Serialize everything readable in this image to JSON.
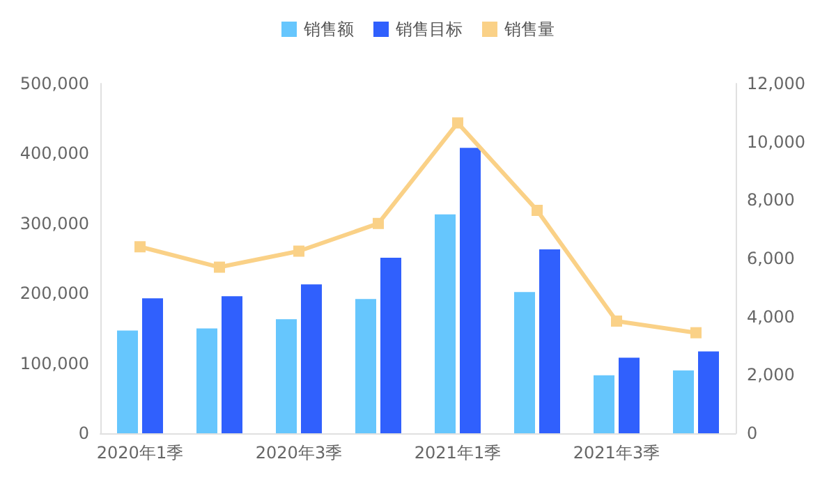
{
  "chart_data": {
    "type": "bar",
    "categories": [
      "2020年1季",
      null,
      "2020年3季",
      null,
      "2021年1季",
      null,
      "2021年3季",
      null
    ],
    "series": [
      {
        "name": "销售额",
        "color": "#66c6fd",
        "values": [
          147000,
          150000,
          163000,
          192000,
          313000,
          202000,
          83000,
          90000
        ]
      },
      {
        "name": "销售目标",
        "color": "#3060fd",
        "values": [
          193000,
          196000,
          213000,
          251000,
          408000,
          263000,
          108000,
          117000
        ]
      },
      {
        "name": "销售量",
        "type": "line",
        "axis": "y2",
        "color": "#fad187",
        "values": [
          6400,
          5700,
          6250,
          7200,
          10650,
          7650,
          3850,
          3450
        ]
      }
    ],
    "ylim": [
      0,
      500000
    ],
    "yticks": [
      0,
      {
        "value": 100000,
        "label": "100,000"
      },
      {
        "value": 200000,
        "label": "200,000"
      },
      {
        "value": 300000,
        "label": "300,000"
      },
      {
        "value": 400000,
        "label": "400,000"
      },
      {
        "value": 500000,
        "label": "500,000"
      }
    ],
    "y2lim": [
      0,
      12000
    ],
    "y2ticks": [
      0,
      {
        "value": 2000,
        "label": "2,000"
      },
      {
        "value": 4000,
        "label": "4,000"
      },
      {
        "value": 6000,
        "label": "6,000"
      },
      {
        "value": 8000,
        "label": "8,000"
      },
      {
        "value": 10000,
        "label": "10,000"
      },
      {
        "value": 12000,
        "label": "12,000"
      }
    ],
    "grid": false,
    "legend": "top",
    "marker": "square"
  }
}
